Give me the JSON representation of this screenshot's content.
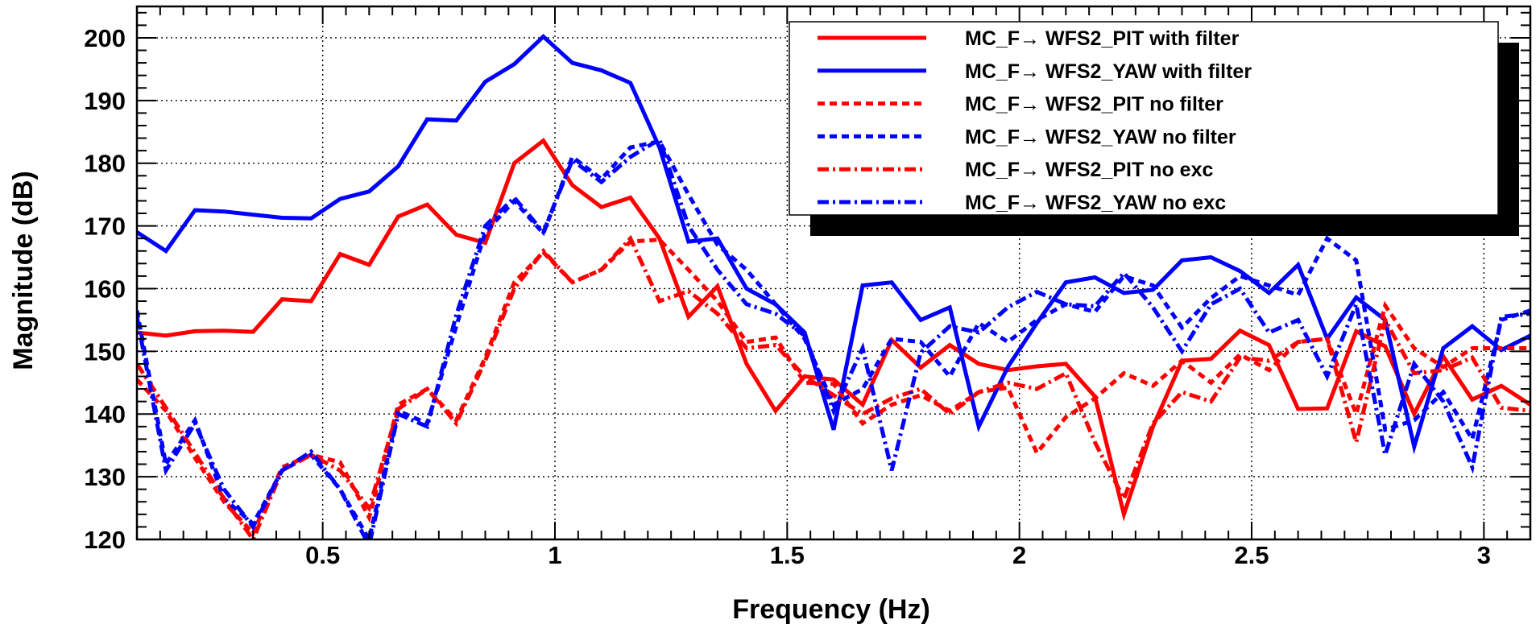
{
  "chart_data": {
    "type": "line",
    "title": "",
    "xlabel": "Frequency (Hz)",
    "ylabel": "Magnitude (dB)",
    "xlim": [
      0.1,
      3.1
    ],
    "ylim": [
      120,
      205
    ],
    "xticks": [
      0.5,
      1,
      1.5,
      2,
      2.5,
      3
    ],
    "xtick_labels": [
      "0.5",
      "1",
      "1.5",
      "2",
      "2.5",
      "3"
    ],
    "yticks": [
      120,
      130,
      140,
      150,
      160,
      170,
      180,
      190,
      200
    ],
    "ytick_labels": [
      "120",
      "130",
      "140",
      "150",
      "160",
      "170",
      "180",
      "190",
      "200"
    ],
    "grid": true,
    "legend_position": "top-right",
    "x": [
      0.1,
      0.1625,
      0.225,
      0.2875,
      0.35,
      0.4125,
      0.475,
      0.5375,
      0.6,
      0.6625,
      0.725,
      0.7875,
      0.85,
      0.9125,
      0.975,
      1.0375,
      1.1,
      1.1625,
      1.225,
      1.2875,
      1.35,
      1.4125,
      1.475,
      1.5375,
      1.6,
      1.6625,
      1.725,
      1.7875,
      1.85,
      1.9125,
      1.975,
      2.0375,
      2.1,
      2.1625,
      2.225,
      2.2875,
      2.35,
      2.4125,
      2.475,
      2.5375,
      2.6,
      2.6625,
      2.725,
      2.7875,
      2.85,
      2.9125,
      2.975,
      3.0375,
      3.1
    ],
    "series": [
      {
        "name": "MC_F→ WFS2_PIT with filter",
        "color": "#ff0000",
        "dash": "solid",
        "values": [
          153,
          152.5,
          153.2,
          153.3,
          153.1,
          158.3,
          158,
          165.5,
          163.8,
          171.5,
          173.4,
          168.6,
          167.3,
          180,
          183.6,
          176.5,
          173,
          174.5,
          168,
          155.5,
          160.4,
          148,
          140.5,
          146,
          145.5,
          141.5,
          151.8,
          147.4,
          151,
          148,
          147,
          147.6,
          148,
          142.8,
          124,
          138,
          148.5,
          148.8,
          153.3,
          151,
          140.8,
          140.9,
          153.2,
          150.8,
          140,
          149.2,
          142.3,
          144.5,
          141.5
        ]
      },
      {
        "name": "MC_F→ WFS2_YAW with filter",
        "color": "#0000ff",
        "dash": "solid",
        "values": [
          169,
          166,
          172.5,
          172.3,
          171.8,
          171.3,
          171.2,
          174.3,
          175.5,
          179.5,
          187,
          186.8,
          193,
          195.8,
          200.2,
          196,
          194.8,
          192.8,
          182.5,
          167.5,
          168,
          160,
          157.5,
          153,
          137.5,
          160.5,
          161,
          155,
          157,
          138,
          147.5,
          154.5,
          161,
          161.8,
          159.3,
          159.8,
          164.5,
          165,
          162.8,
          159.3,
          163.8,
          152,
          158.6,
          155,
          134.8,
          150.5,
          154,
          150.2,
          152.5
        ]
      },
      {
        "name": "MC_F→ WFS2_PIT no filter",
        "color": "#ff0000",
        "dash": "dashed",
        "values": [
          145.5,
          140.5,
          133,
          126,
          121,
          131.5,
          133.5,
          132.3,
          123.5,
          141.5,
          144,
          139,
          149,
          161,
          165.8,
          161,
          163,
          167.5,
          167.8,
          163,
          158,
          151.5,
          152.2,
          145,
          144.8,
          138.5,
          141.5,
          143,
          140.5,
          143.5,
          144.2,
          133.8,
          139.5,
          142.5,
          146.5,
          144.5,
          148.5,
          145,
          149.5,
          147,
          151.5,
          152,
          140,
          157.3,
          150.5,
          147.5,
          150.5,
          150.5,
          150.5
        ]
      },
      {
        "name": "MC_F→ WFS2_YAW no filter",
        "color": "#0000ff",
        "dash": "dashed",
        "values": [
          156.5,
          132,
          139,
          126.5,
          122.5,
          131,
          133.5,
          128,
          120,
          140.5,
          138.5,
          154,
          169,
          174,
          168.8,
          181,
          177.5,
          182.5,
          183.5,
          175,
          167,
          163,
          157.5,
          152,
          141.5,
          144,
          152,
          151.5,
          146,
          154.5,
          151.5,
          155,
          157.5,
          156.3,
          162,
          160.5,
          153.8,
          158.5,
          162,
          160.5,
          159,
          168,
          164.5,
          137.5,
          139,
          143.5,
          136,
          155,
          156.5
        ]
      },
      {
        "name": "MC_F→ WFS2_PIT no exc",
        "color": "#ff0000",
        "dash": "dashdot",
        "values": [
          148,
          141,
          133.8,
          126.5,
          120,
          131,
          133.5,
          131,
          125,
          140.8,
          144,
          138.5,
          148.5,
          160,
          166,
          161,
          163,
          168,
          158,
          159.6,
          156,
          150.5,
          151,
          146,
          143,
          140,
          142.5,
          144,
          140,
          143.5,
          145,
          144,
          146.5,
          135.5,
          126.5,
          138.5,
          143.5,
          142,
          149,
          148.5,
          151.5,
          152,
          135.5,
          155,
          146.5,
          147,
          149,
          141,
          140.5
        ]
      },
      {
        "name": "MC_F→ WFS2_YAW no exc",
        "color": "#0000ff",
        "dash": "dashdot",
        "values": [
          155.5,
          131,
          138.5,
          128,
          122,
          131,
          134,
          128,
          119,
          140,
          138,
          155.8,
          170,
          174.5,
          169,
          180.5,
          177,
          181,
          183.8,
          170,
          163,
          157.5,
          156,
          152.5,
          140.5,
          150.5,
          131,
          149.8,
          154,
          153,
          157,
          159.5,
          157.5,
          157.2,
          162.5,
          157,
          150,
          157.5,
          160,
          153,
          155,
          146,
          157.5,
          133.5,
          148,
          142,
          131.5,
          155.5,
          156
        ]
      }
    ]
  }
}
